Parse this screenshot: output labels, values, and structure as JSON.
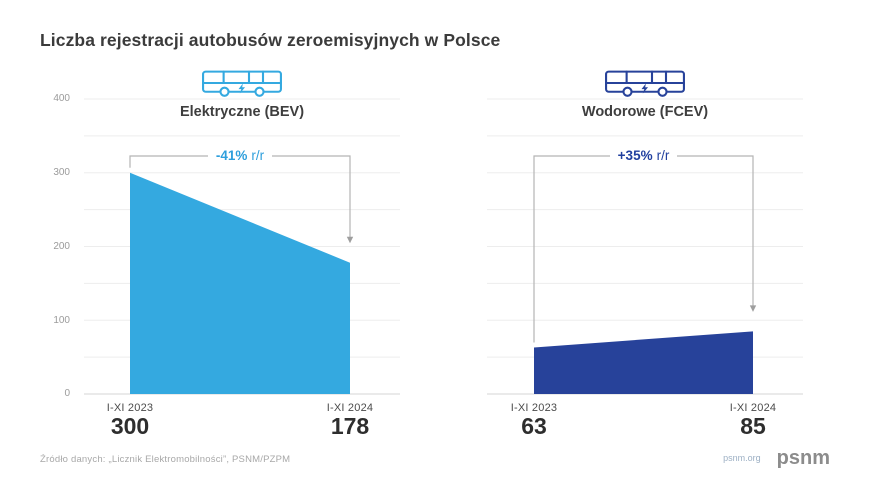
{
  "title": "Liczba rejestracji autobusów zeroemisyjnych w Polsce",
  "y_axis": {
    "tick_labels": [
      "400",
      "300",
      "200",
      "100",
      "0"
    ]
  },
  "chart_data": [
    {
      "type": "area",
      "title": "Elektryczne (BEV)",
      "icon": "electric-bus",
      "categories": [
        "I-XI 2023",
        "I-XI 2024"
      ],
      "values": [
        300,
        178
      ],
      "change": "-41%",
      "change_suffix": "r/r",
      "annotation": "-41% r/r",
      "color": "#34A9E0",
      "accent_color": "#2E9FDC",
      "ylim": [
        0,
        400
      ],
      "grid_step": 50,
      "xlabel": "",
      "ylabel": "",
      "legend": "none"
    },
    {
      "type": "area",
      "title": "Wodorowe (FCEV)",
      "icon": "hydrogen-bus",
      "categories": [
        "I-XI 2023",
        "I-XI 2024"
      ],
      "values": [
        63,
        85
      ],
      "change": "+35%",
      "change_suffix": "r/r",
      "annotation": "+35% r/r",
      "color": "#27429A",
      "accent_color": "#21409F",
      "ylim": [
        0,
        400
      ],
      "grid_step": 50,
      "xlabel": "",
      "ylabel": "",
      "legend": "none"
    }
  ],
  "footer": {
    "source": "Źródło danych: „Licznik Elektromobilności”, PSNM/PZPM",
    "website": "psnm.org",
    "logo_text": "psnm"
  }
}
